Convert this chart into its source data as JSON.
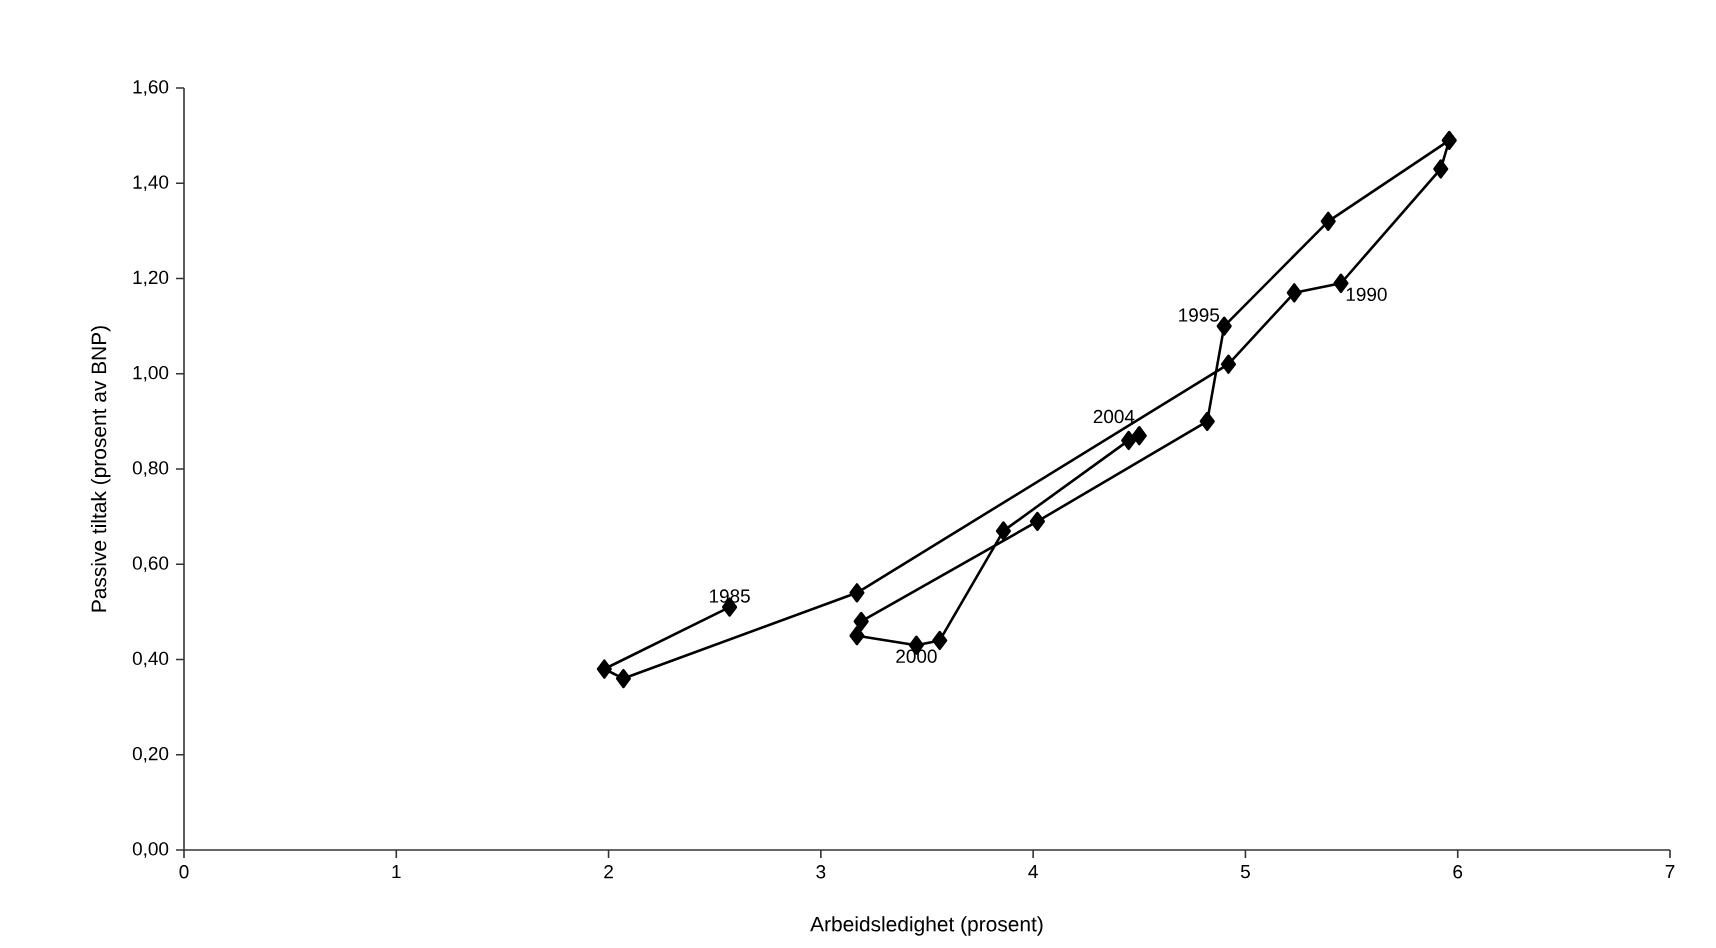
{
  "chart_data": {
    "type": "line",
    "xlabel": "Arbeidsledighet (prosent)",
    "ylabel": "Passive tiltak (prosent av BNP)",
    "xlim": [
      0,
      7
    ],
    "xticks": [
      0,
      1,
      2,
      3,
      4,
      5,
      6,
      7
    ],
    "ylim": [
      0,
      1.6
    ],
    "yticks": [
      {
        "value": 0,
        "label": "0,00"
      },
      {
        "value": 0.2,
        "label": "0,20"
      },
      {
        "value": 0.4,
        "label": "0,40"
      },
      {
        "value": 0.6,
        "label": "0,60"
      },
      {
        "value": 0.8,
        "label": "0,80"
      },
      {
        "value": 1.0,
        "label": "1,00"
      },
      {
        "value": 1.2,
        "label": "1,20"
      },
      {
        "value": 1.4,
        "label": "1,40"
      },
      {
        "value": 1.6,
        "label": "1,60"
      }
    ],
    "series": [
      {
        "color": "#000000",
        "x": [
          2.57,
          1.98,
          2.07,
          3.17,
          4.92,
          5.23,
          5.45,
          5.92,
          5.96,
          5.39,
          4.9,
          4.82,
          4.02,
          3.19,
          3.17,
          3.45,
          3.56,
          3.86,
          4.45,
          4.5
        ],
        "values": [
          0.51,
          0.38,
          0.36,
          0.54,
          1.02,
          1.17,
          1.19,
          1.43,
          1.49,
          1.32,
          1.1,
          0.9,
          0.69,
          0.48,
          0.45,
          0.43,
          0.44,
          0.67,
          0.86,
          0.87
        ]
      }
    ],
    "marker": "diamond",
    "line_style": "solid",
    "grid": false,
    "annotations": [
      {
        "text": "1985",
        "x": 2.57,
        "y": 0.51
      },
      {
        "text": "1990",
        "x": 5.45,
        "y": 1.19
      },
      {
        "text": "1995",
        "x": 4.9,
        "y": 1.1
      },
      {
        "text": "2000",
        "x": 3.45,
        "y": 0.43
      },
      {
        "text": "2004",
        "x": 4.5,
        "y": 0.87
      }
    ]
  }
}
